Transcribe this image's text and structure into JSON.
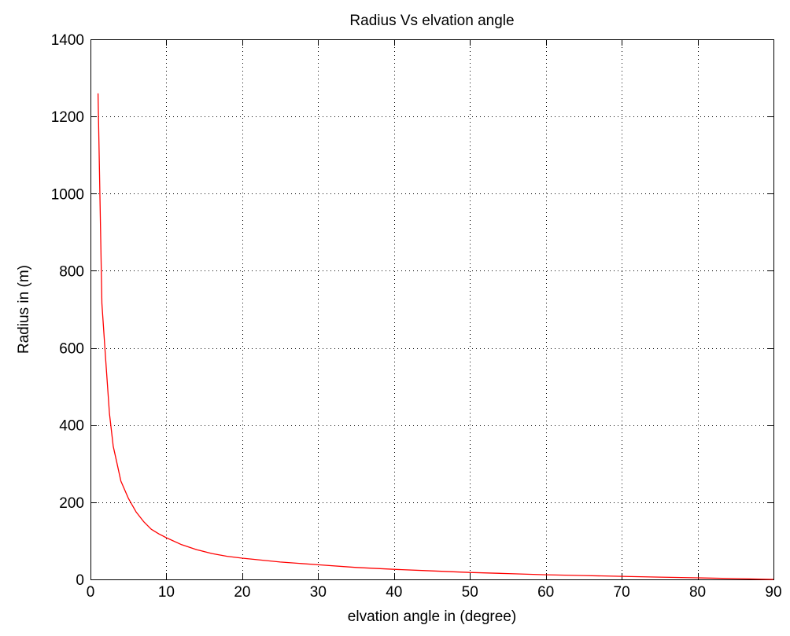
{
  "chart_data": {
    "type": "line",
    "title": "Radius Vs elvation angle",
    "xlabel": "elvation angle in (degree)",
    "ylabel": "Radius in (m)",
    "xlim": [
      0,
      90
    ],
    "ylim": [
      0,
      1400
    ],
    "xticks": [
      0,
      10,
      20,
      30,
      40,
      50,
      60,
      70,
      80,
      90
    ],
    "yticks": [
      0,
      200,
      400,
      600,
      800,
      1000,
      1200,
      1400
    ],
    "xtick_labels": [
      "0",
      "10",
      "20",
      "30",
      "40",
      "50",
      "60",
      "70",
      "80",
      "90"
    ],
    "ytick_labels": [
      "0",
      "200",
      "400",
      "600",
      "800",
      "1000",
      "1200",
      "1400"
    ],
    "grid": true,
    "grid_style": "dotted",
    "series": [
      {
        "color": "#ff0000",
        "x": [
          1,
          1.5,
          2,
          2.5,
          3,
          3.5,
          4,
          5,
          6,
          7,
          8,
          9,
          10,
          12,
          14,
          16,
          18,
          20,
          25,
          30,
          35,
          40,
          45,
          50,
          55,
          60,
          65,
          70,
          75,
          80,
          85,
          90
        ],
        "y": [
          1260,
          715,
          570,
          430,
          345,
          300,
          255,
          210,
          175,
          150,
          130,
          118,
          108,
          90,
          77,
          67,
          60,
          55,
          45,
          38,
          31,
          26,
          22,
          18,
          15,
          12,
          10,
          8,
          6,
          4,
          2,
          0
        ]
      }
    ]
  }
}
